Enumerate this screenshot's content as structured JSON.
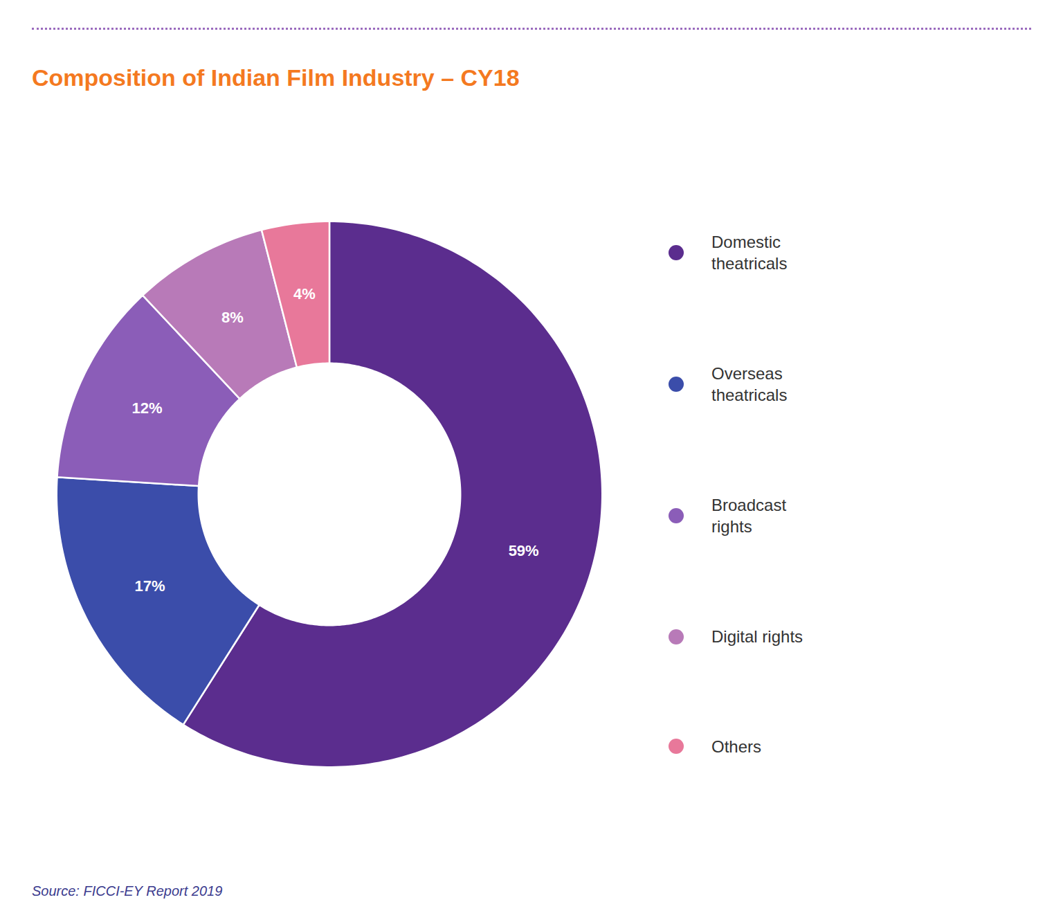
{
  "chart_data": {
    "type": "pie",
    "title": "Composition of Indian Film Industry – CY18",
    "categories": [
      "Domestic\ntheatricals",
      "Overseas\ntheatricals",
      "Broadcast\nrights",
      "Digital rights",
      "Others"
    ],
    "values": [
      59,
      17,
      12,
      8,
      4
    ],
    "value_labels": [
      "59%",
      "17%",
      "12%",
      "8%",
      "4%"
    ],
    "colors": [
      "#5B2D8E",
      "#3B4DAA",
      "#8B5DB8",
      "#B87AB8",
      "#E8789A"
    ],
    "data_labels": true,
    "legend": "right",
    "source": "Source: FICCI-EY Report 2019"
  }
}
